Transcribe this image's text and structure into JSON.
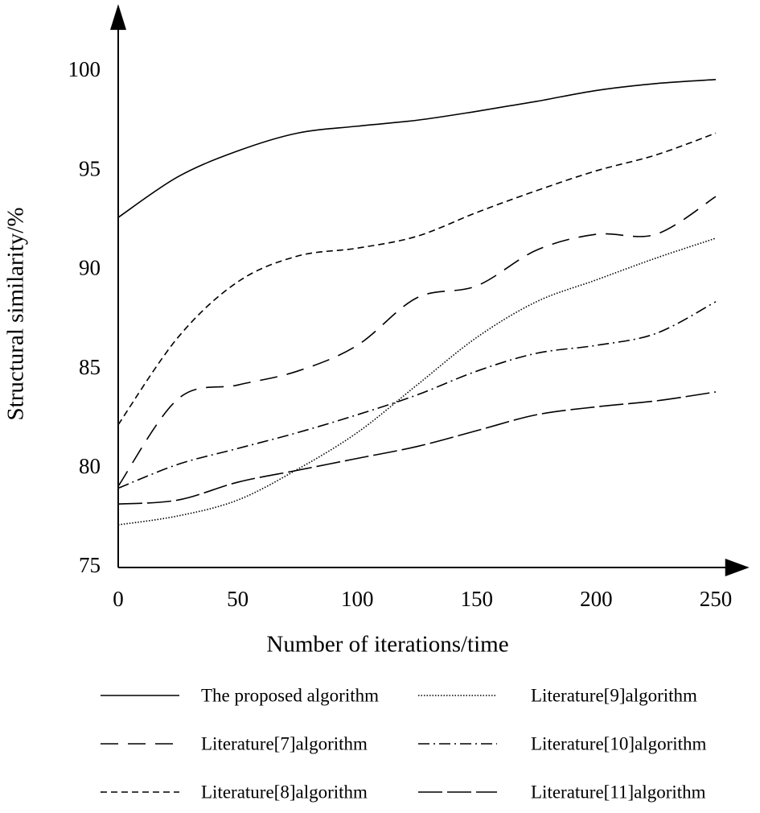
{
  "chart_data": {
    "type": "line",
    "x_label": "Number of iterations/time",
    "y_label": "Structural similarity/%",
    "x": [
      0,
      25,
      50,
      75,
      100,
      125,
      150,
      175,
      200,
      225,
      250
    ],
    "series": [
      {
        "name": "The proposed algorithm",
        "color": "#000000",
        "line_style": "solid",
        "values": [
          92.65,
          94.7,
          96.0,
          96.9,
          97.25,
          97.55,
          98.0,
          98.5,
          99.05,
          99.4,
          99.6
        ]
      },
      {
        "name": "Literature[7]algorithm",
        "color": "#000000",
        "line_style": "dashed",
        "values": [
          79.1,
          83.5,
          84.2,
          84.9,
          86.2,
          88.6,
          89.2,
          91.0,
          91.8,
          91.8,
          93.7
        ]
      },
      {
        "name": "Literature[8]algorithm",
        "color": "#000000",
        "line_style": "short-dashed",
        "values": [
          82.2,
          86.6,
          89.4,
          90.7,
          91.1,
          91.7,
          92.9,
          94.0,
          95.0,
          95.8,
          96.9
        ]
      },
      {
        "name": "Literature[9]algorithm",
        "color": "#000000",
        "line_style": "dotted",
        "values": [
          77.15,
          77.6,
          78.4,
          79.95,
          81.8,
          84.2,
          86.6,
          88.4,
          89.5,
          90.6,
          91.6
        ]
      },
      {
        "name": "Literature[10]algorithm",
        "color": "#000000",
        "line_style": "dash-dot",
        "values": [
          79.0,
          80.2,
          81.0,
          81.8,
          82.7,
          83.7,
          84.9,
          85.8,
          86.2,
          86.8,
          88.4
        ]
      },
      {
        "name": "Literature[11]algorithm",
        "color": "#000000",
        "line_style": "long-dash",
        "values": [
          78.2,
          78.4,
          79.3,
          79.9,
          80.5,
          81.1,
          81.9,
          82.7,
          83.1,
          83.4,
          83.85
        ]
      }
    ],
    "xlim": [
      0,
      260
    ],
    "ylim": [
      75,
      103
    ],
    "xticks": [
      0,
      50,
      100,
      150,
      200,
      250
    ],
    "yticks": [
      75,
      80,
      85,
      90,
      95,
      100
    ],
    "grid": false
  }
}
